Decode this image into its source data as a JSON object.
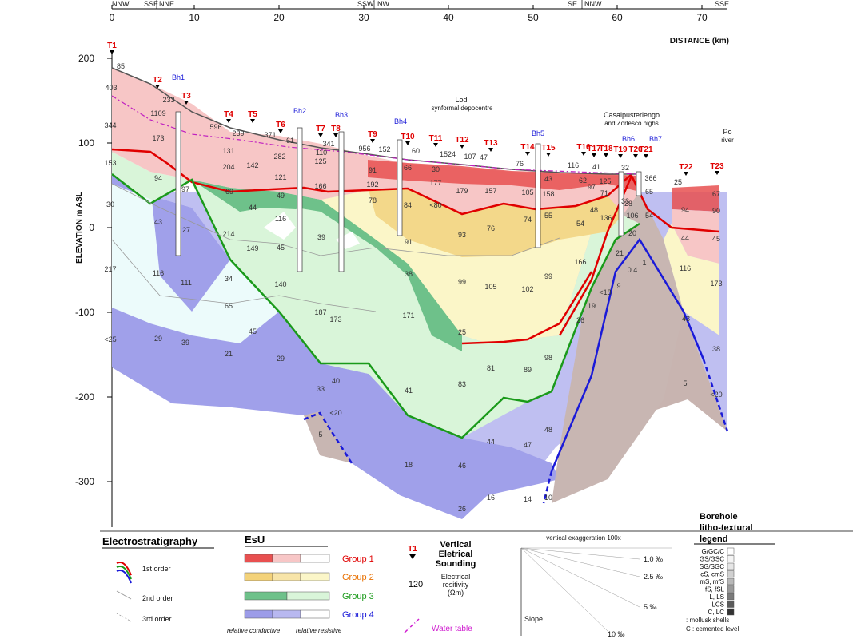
{
  "top_axis": {
    "ticks": [
      "10",
      "20",
      "30",
      "40",
      "50",
      "60",
      "70"
    ],
    "orientations": [
      "NNW",
      "SSE",
      "NNE",
      "SSW",
      "NW",
      "SE",
      "NNW",
      "SSE"
    ],
    "distance_label": "DISTANCE (km)"
  },
  "y_axis": {
    "label": "ELEVATION m ASL",
    "ticks": [
      "200",
      "100",
      "0",
      "-100",
      "-200",
      "-300"
    ]
  },
  "annotations": {
    "lodi_1": "Lodi",
    "lodi_2": "synformal depocentre",
    "casal_1": "Casalpusterlengo",
    "casal_2": "and Zorlesco highs",
    "po_1": "Po",
    "po_2": "river"
  },
  "soundings": [
    "T1",
    "T2",
    "T3",
    "T4",
    "T5",
    "T6",
    "T7",
    "T8",
    "T9",
    "T10",
    "T11",
    "T12",
    "T13",
    "T14",
    "T15",
    "T16",
    "T17",
    "T18",
    "T19",
    "T20",
    "T21",
    "T22",
    "T23"
  ],
  "boreholes": [
    "Bh1",
    "Bh2",
    "Bh3",
    "Bh4",
    "Bh5",
    "Bh6",
    "Bh7"
  ],
  "values": [
    "85",
    "403",
    "233",
    "1109",
    "344",
    "173",
    "596",
    "239",
    "371",
    "61",
    "282",
    "341",
    "110",
    "956",
    "152",
    "60",
    "1524",
    "107",
    "47",
    "76",
    "116",
    "41",
    "32",
    "366",
    "25",
    "153",
    "94",
    "97",
    "204",
    "131",
    "142",
    "121",
    "125",
    "166",
    "91",
    "192",
    "66",
    "30",
    "177",
    "43",
    "62",
    "97",
    "125",
    "71",
    "33",
    "65",
    "67",
    "30",
    "43",
    "69",
    "44",
    "116",
    "49",
    "45",
    "39",
    "78",
    "84",
    "<80",
    "179",
    "157",
    "105",
    "158",
    "48",
    "136",
    "28",
    "106",
    "54",
    "94",
    "90",
    "27",
    "214",
    "149",
    "91",
    "93",
    "76",
    "74",
    "55",
    "54",
    "20",
    "44",
    "45",
    "217",
    "116",
    "111",
    "34",
    "140",
    "38",
    "99",
    "105",
    "102",
    "99",
    "166",
    "21",
    "1",
    "116",
    "173",
    "65",
    "187",
    "173",
    "171",
    "<18",
    "9",
    "0.4",
    "43",
    "<25",
    "29",
    "39",
    "45",
    "21",
    "29",
    "25",
    "81",
    "89",
    "98",
    "19",
    "26",
    "38",
    "40",
    "33",
    "41",
    "83",
    "5",
    "<20",
    "<20",
    "5",
    "44",
    "47",
    "48",
    "18",
    "46",
    "16",
    "14",
    "10",
    "26"
  ],
  "legend": {
    "electro_title": "Electrostratigraphy",
    "order1": "1st order",
    "order2": "2nd order",
    "order3": "3rd order",
    "esu_title": "EsU",
    "group1": "Group 1",
    "group2": "Group 2",
    "group3": "Group 3",
    "group4": "Group 4",
    "relative_conductive": "relative conductive",
    "relative_resistive": "relative resistive",
    "ves_symbol": "T1",
    "ves_1": "Vertical",
    "ves_2": "Eletrical",
    "ves_3": "Sounding",
    "res_value": "120",
    "res_1": "Electrical",
    "res_2": "resitivity",
    "res_3": "(Ωm)",
    "water_table": "Water table",
    "vert_exag": "vertical exaggeration 100x",
    "slope": "Slope",
    "slope_vals": [
      "1.0 ‰",
      "2.5 ‰",
      "5 ‰",
      "10 ‰"
    ],
    "bh_title_1": "Borehole",
    "bh_title_2": "litho-textural",
    "bh_title_3": "legend",
    "bh_items": [
      "G/GC/C",
      "GS/GSC",
      "SG/SGC",
      "cS, cmS",
      "mS, mfS",
      "fS, fSL",
      "L, LS",
      "LCS",
      "C, LC"
    ],
    "mollusk": ": mollusk shells",
    "cemented": "C : cemented level"
  },
  "colors": {
    "group1": "#e85050",
    "group2": "#f3d27a",
    "group3": "#6ec18a",
    "group4": "#9c9ce8",
    "order1_red": "#e00000",
    "order1_green": "#1a9a1a",
    "order1_blue": "#1a1ad8",
    "water_table": "#d020d0"
  }
}
